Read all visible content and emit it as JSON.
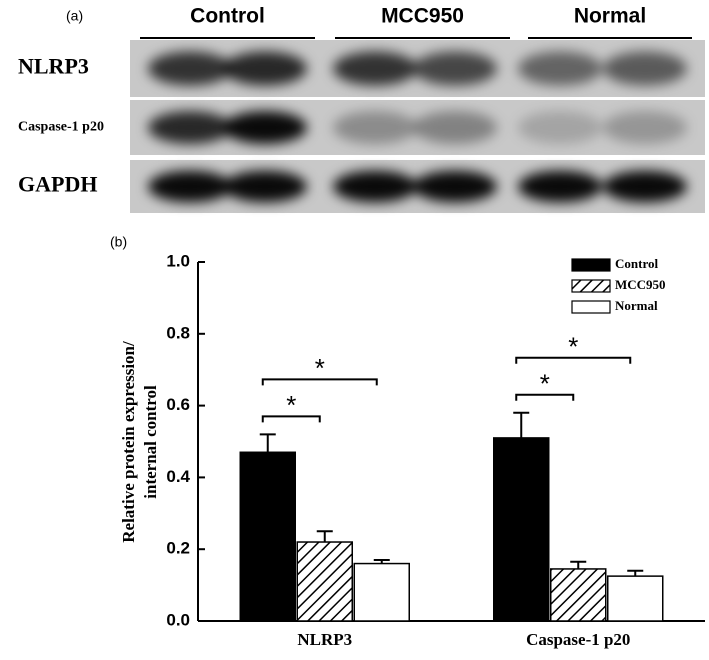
{
  "blot": {
    "panel_label": "(a)",
    "groups": [
      "Control",
      "MCC950",
      "Normal"
    ],
    "rows": [
      "NLRP3",
      "Caspase-1 p20",
      "GAPDH"
    ]
  },
  "chart_data": {
    "type": "bar",
    "panel_label": "(b)",
    "ylabel": [
      "Relative protein expression/",
      "internal control"
    ],
    "categories": [
      "NLRP3",
      "Caspase-1 p20"
    ],
    "series": [
      {
        "name": "Control",
        "color": "#000000",
        "hatch": false,
        "values": [
          0.47,
          0.51
        ],
        "errors": [
          0.05,
          0.07
        ]
      },
      {
        "name": "MCC950",
        "color": "#ffffff",
        "hatch": true,
        "values": [
          0.22,
          0.145
        ],
        "errors": [
          0.03,
          0.02
        ]
      },
      {
        "name": "Normal",
        "color": "#ffffff",
        "hatch": false,
        "values": [
          0.16,
          0.125
        ],
        "errors": [
          0.01,
          0.015
        ]
      }
    ],
    "ylim": [
      0,
      1
    ],
    "yticks": [
      {
        "value": 0,
        "label": "0.0"
      },
      {
        "value": 0.2,
        "label": "0.2"
      },
      {
        "value": 0.4,
        "label": "0.4"
      },
      {
        "value": 0.6,
        "label": "0.6"
      },
      {
        "value": 0.8,
        "label": "0.8"
      },
      {
        "value": 1,
        "label": "1.0"
      }
    ],
    "legend": "upper right",
    "annotations": [
      {
        "label": "*",
        "category": "NLRP3",
        "from": "Control",
        "to": "MCC950"
      },
      {
        "label": "*",
        "category": "NLRP3",
        "from": "Control",
        "to": "Normal"
      },
      {
        "label": "*",
        "category": "Caspase-1 p20",
        "from": "Control",
        "to": "MCC950"
      },
      {
        "label": "*",
        "category": "Caspase-1 p20",
        "from": "Control",
        "to": "Normal"
      }
    ]
  }
}
